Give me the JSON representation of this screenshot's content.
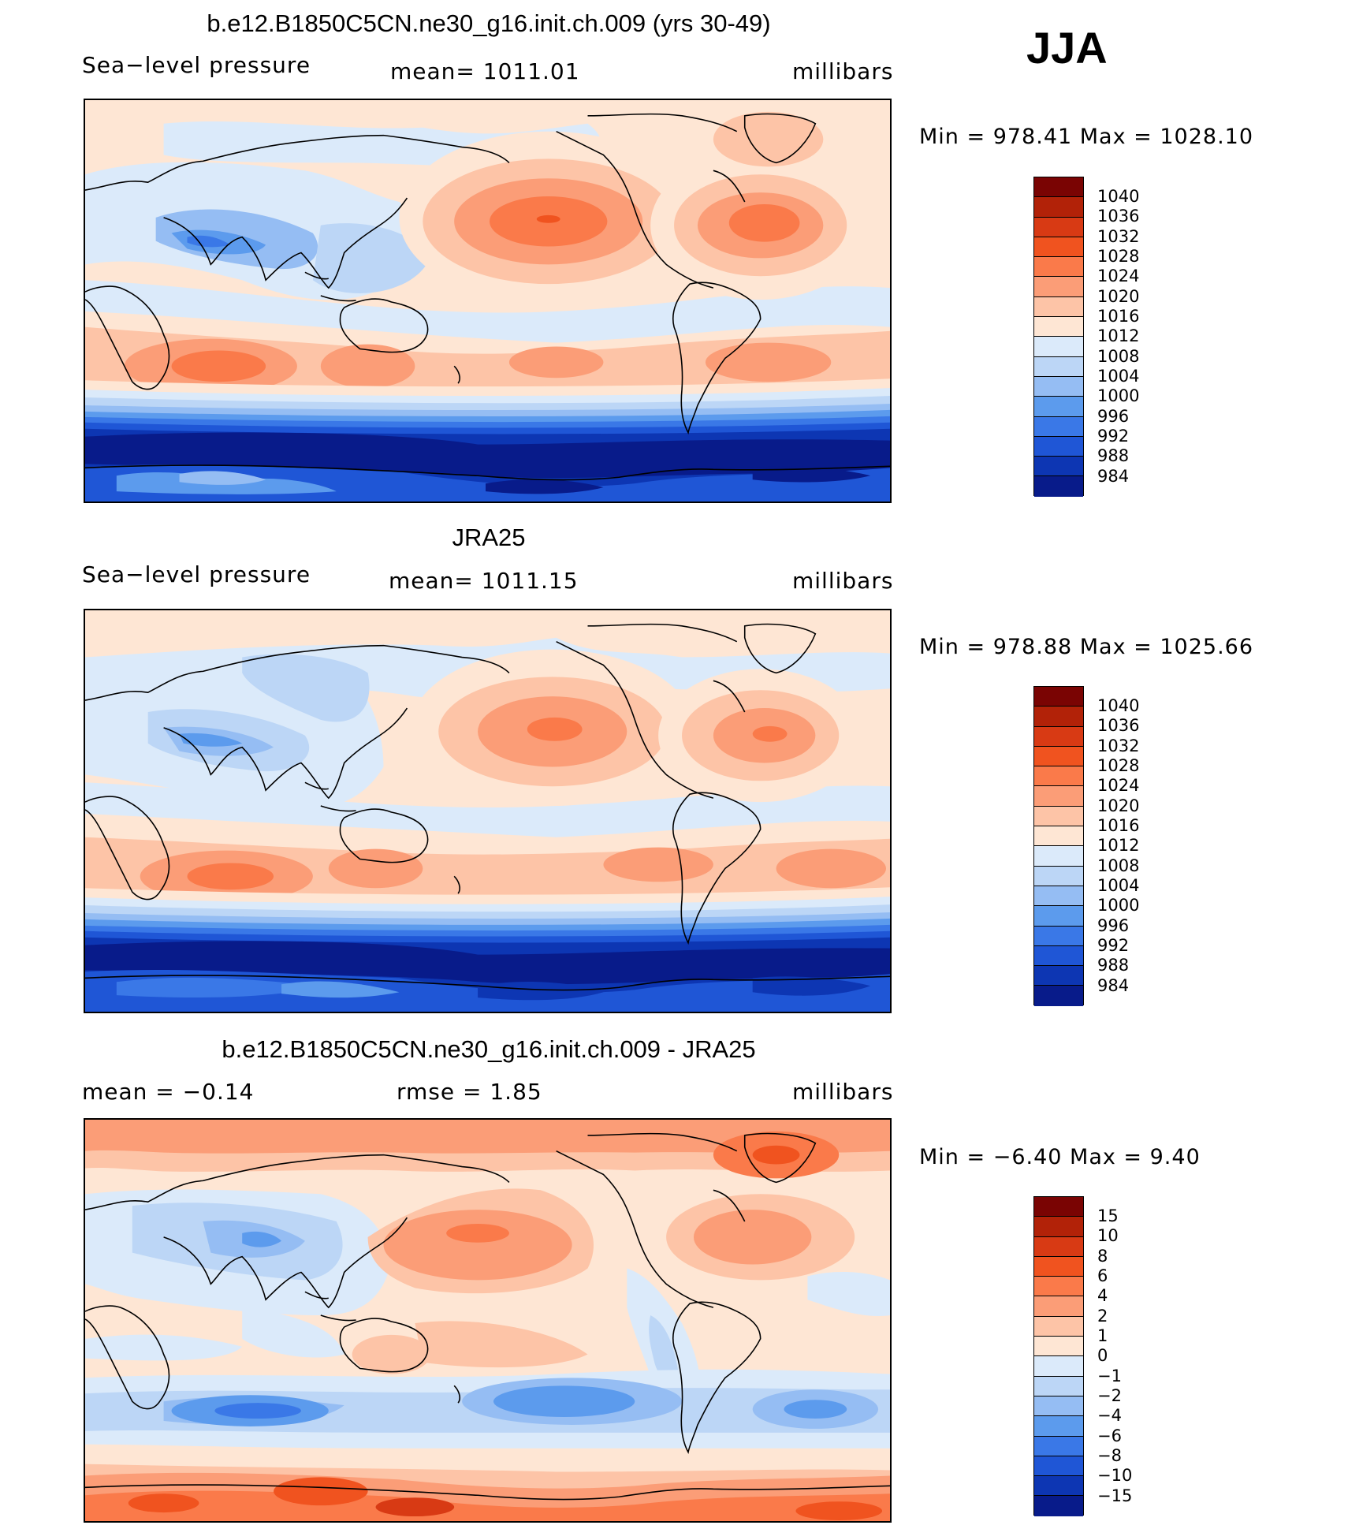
{
  "season": "JJA",
  "units": "millibars",
  "variable": "Sea−level pressure",
  "coast_color": "#000000",
  "palette_abs": [
    "#7a0403",
    "#b22208",
    "#d83a14",
    "#f0531f",
    "#fa7a4a",
    "#fb9d77",
    "#fdc4a7",
    "#fee6d4",
    "#dbeafa",
    "#bcd6f6",
    "#95bdf3",
    "#5c9bed",
    "#3a78e7",
    "#1f56d6",
    "#0d36b3",
    "#081b8a"
  ],
  "panels": [
    {
      "id": "model",
      "title": "b.e12.B1850C5CN.ne30_g16.init.ch.009 (yrs 30-49)",
      "left_label": "Sea−level pressure",
      "mid_label": "mean=  1011.01",
      "right_label": "millibars",
      "minmax": "Min  =  978.41  Max  =  1028.10",
      "colorbar_labels": [
        "1040",
        "1036",
        "1032",
        "1028",
        "1024",
        "1020",
        "1016",
        "1012",
        "1008",
        "1004",
        "1000",
        "996",
        "992",
        "988",
        "984"
      ]
    },
    {
      "id": "obs",
      "title": "JRA25",
      "left_label": "Sea−level pressure",
      "mid_label": "mean=  1011.15",
      "right_label": "millibars",
      "minmax": "Min  =  978.88  Max  =  1025.66",
      "colorbar_labels": [
        "1040",
        "1036",
        "1032",
        "1028",
        "1024",
        "1020",
        "1016",
        "1012",
        "1008",
        "1004",
        "1000",
        "996",
        "992",
        "988",
        "984"
      ]
    },
    {
      "id": "diff",
      "title": "b.e12.B1850C5CN.ne30_g16.init.ch.009 - JRA25",
      "left_label": "mean  =     −0.14",
      "mid_label": "rmse  =      1.85",
      "right_label": "millibars",
      "minmax": "Min  =    −6.40  Max  =      9.40",
      "colorbar_labels": [
        "15",
        "10",
        "8",
        "6",
        "4",
        "2",
        "1",
        "0",
        "−1",
        "−2",
        "−4",
        "−6",
        "−8",
        "−10",
        "−15"
      ]
    }
  ]
}
